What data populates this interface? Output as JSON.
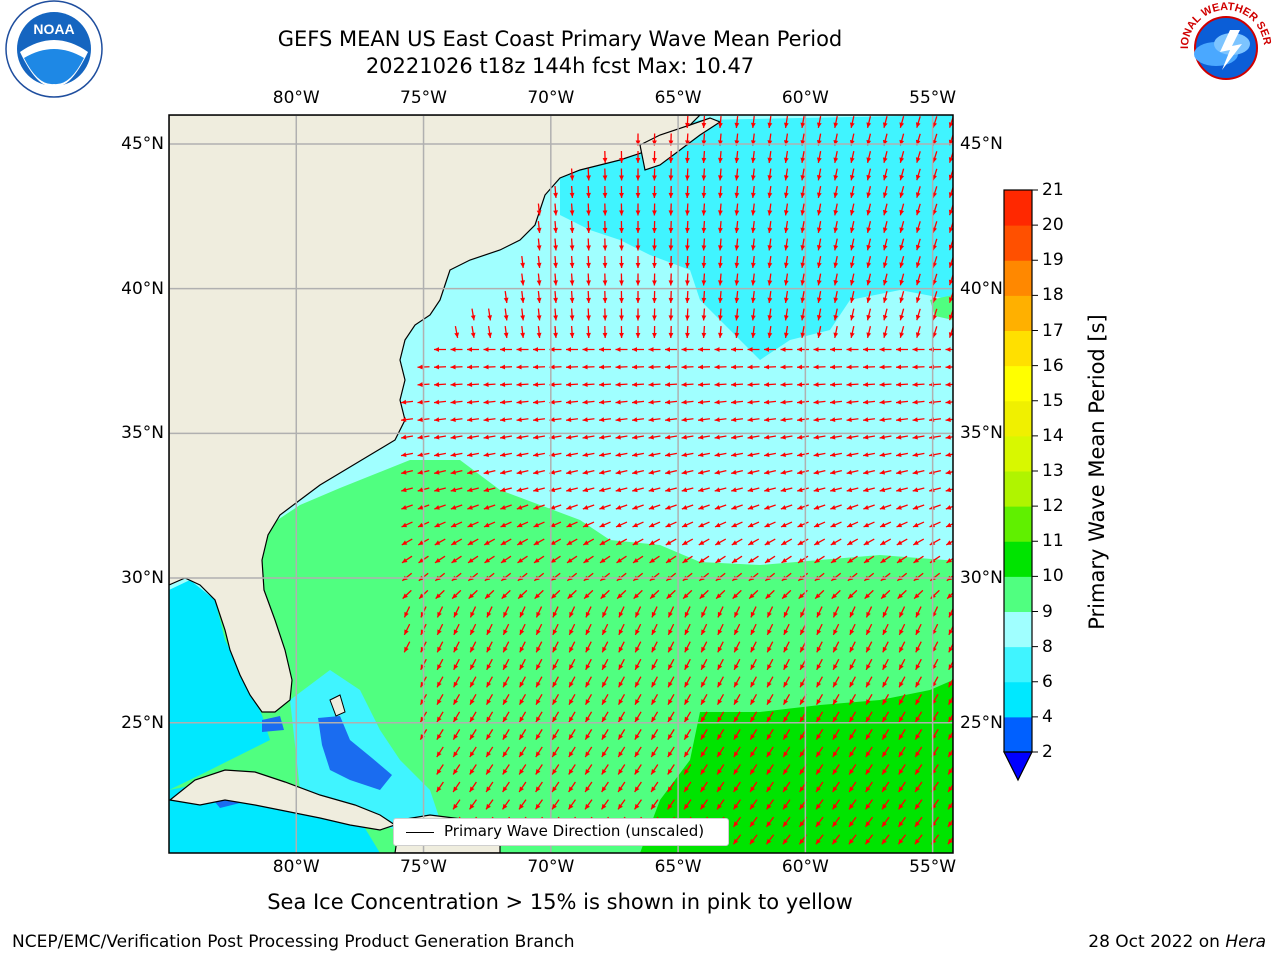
{
  "title": {
    "line1": "GEFS MEAN US East Coast Primary Wave Mean Period",
    "line2": "20221026 t18z 144h fcst   Max: 10.47"
  },
  "map": {
    "lon_ticks": [
      "80°W",
      "75°W",
      "70°W",
      "65°W",
      "60°W",
      "55°W"
    ],
    "lat_ticks": [
      "45°N",
      "40°N",
      "35°N",
      "30°N",
      "25°N"
    ],
    "lon_values": [
      -80,
      -75,
      -70,
      -65,
      -60,
      -55
    ],
    "lat_values": [
      45,
      40,
      35,
      30,
      25
    ],
    "extent": {
      "lon_min": -85,
      "lon_max": -54.2,
      "lat_min": 20.5,
      "lat_max": 46
    },
    "legend_label": "Primary Wave Direction (unscaled)",
    "arrow_color": "#ff0000",
    "land_color": "#efedde"
  },
  "colorbar": {
    "title": "Primary Wave Mean Period [s]",
    "tick_labels": [
      "2",
      "4",
      "6",
      "8",
      "9",
      "10",
      "11",
      "12",
      "13",
      "14",
      "15",
      "16",
      "17",
      "18",
      "19",
      "20",
      "21"
    ],
    "colors": [
      "#0060ff",
      "#00e8ff",
      "#40f4ff",
      "#a0ffff",
      "#50ff80",
      "#00e400",
      "#60f000",
      "#b0f400",
      "#d8f800",
      "#f0f000",
      "#ffff00",
      "#ffe000",
      "#ffb000",
      "#ff8800",
      "#ff5000",
      "#ff2800"
    ],
    "under_color": "#0000ff",
    "over_color": "#ff0000"
  },
  "subtitle": "Sea Ice Concentration > 15% is shown in pink to yellow",
  "footer": {
    "left": "NCEP/EMC/Verification Post Processing Product Generation Branch",
    "right_date": "28 Oct 2022 on ",
    "right_machine": "Hera"
  },
  "logos": {
    "noaa_text": "NOAA",
    "nws_text": "NATIONAL WEATHER SERVICE"
  }
}
